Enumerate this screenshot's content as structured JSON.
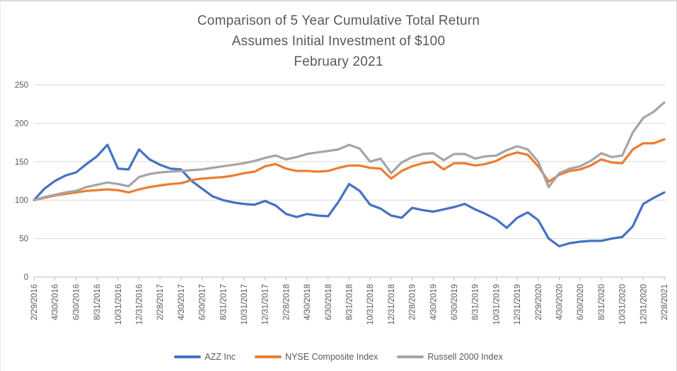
{
  "title": {
    "line1": "Comparison of 5 Year Cumulative Total Return",
    "line2": "Assumes Initial Investment of $100",
    "line3": "February 2021"
  },
  "axis_colors": {
    "gridline": "#d9d9d9",
    "axis_line": "#bfbfbf",
    "tick": "#bfbfbf",
    "label_text": "#595959"
  },
  "chart_data": {
    "type": "line",
    "title": "Comparison of 5 Year Cumulative Total Return Assumes Initial Investment of $100 February 2021",
    "xlabel": "",
    "ylabel": "",
    "ylim": [
      0,
      250
    ],
    "yticks": [
      0,
      50,
      100,
      150,
      200,
      250
    ],
    "grid": "horizontal",
    "legend_position": "bottom",
    "x_tick_labels": [
      "2/29/2016",
      "4/30/2016",
      "6/30/2016",
      "8/31/2016",
      "10/31/2016",
      "12/31/2016",
      "2/28/2017",
      "4/30/2017",
      "6/30/2017",
      "8/31/2017",
      "10/31/2017",
      "12/31/2017",
      "2/28/2018",
      "4/30/2018",
      "6/30/2018",
      "8/31/2018",
      "10/31/2018",
      "12/31/2018",
      "2/28/2019",
      "4/30/2019",
      "6/30/2019",
      "8/31/2019",
      "10/31/2019",
      "12/31/2019",
      "2/29/2020",
      "4/30/2020",
      "6/30/2020",
      "8/31/2020",
      "10/31/2020",
      "12/31/2020",
      "2/28/2021"
    ],
    "x": [
      "2/29/2016",
      "3/31/2016",
      "4/30/2016",
      "5/31/2016",
      "6/30/2016",
      "7/31/2016",
      "8/31/2016",
      "9/30/2016",
      "10/31/2016",
      "11/30/2016",
      "12/31/2016",
      "1/31/2017",
      "2/28/2017",
      "3/31/2017",
      "4/30/2017",
      "5/31/2017",
      "6/30/2017",
      "7/31/2017",
      "8/31/2017",
      "9/30/2017",
      "10/31/2017",
      "11/30/2017",
      "12/31/2017",
      "1/31/2018",
      "2/28/2018",
      "3/31/2018",
      "4/30/2018",
      "5/31/2018",
      "6/30/2018",
      "7/31/2018",
      "8/31/2018",
      "9/30/2018",
      "10/31/2018",
      "11/30/2018",
      "12/31/2018",
      "1/31/2019",
      "2/28/2019",
      "3/31/2019",
      "4/30/2019",
      "5/31/2019",
      "6/30/2019",
      "7/31/2019",
      "8/31/2019",
      "9/30/2019",
      "10/31/2019",
      "11/30/2019",
      "12/31/2019",
      "1/31/2020",
      "2/29/2020",
      "3/31/2020",
      "4/30/2020",
      "5/31/2020",
      "6/30/2020",
      "7/31/2020",
      "8/31/2020",
      "9/30/2020",
      "10/31/2020",
      "11/30/2020",
      "12/31/2020",
      "1/31/2021",
      "2/28/2021"
    ],
    "series": [
      {
        "name": "AZZ Inc",
        "color": "#4472C4",
        "values": [
          100,
          115,
          125,
          132,
          136,
          147,
          157,
          172,
          141,
          140,
          166,
          153,
          146,
          141,
          140,
          125,
          115,
          105,
          100,
          97,
          95,
          94,
          99,
          93,
          82,
          78,
          82,
          80,
          79,
          98,
          121,
          112,
          94,
          89,
          80,
          77,
          90,
          87,
          85,
          88,
          91,
          95,
          88,
          82,
          75,
          64,
          77,
          84,
          74,
          50,
          40,
          44,
          46,
          47,
          47,
          50,
          52,
          66,
          95,
          103,
          110
        ]
      },
      {
        "name": "NYSE Composite Index",
        "color": "#ED7D31",
        "values": [
          100,
          103,
          106,
          108,
          110,
          112,
          113,
          114,
          113,
          110,
          114,
          117,
          119,
          121,
          122,
          126,
          128,
          129,
          130,
          132,
          135,
          137,
          144,
          147,
          141,
          138,
          138,
          137,
          138,
          142,
          145,
          145,
          142,
          141,
          128,
          138,
          144,
          148,
          150,
          140,
          148,
          148,
          145,
          147,
          151,
          158,
          162,
          159,
          144,
          124,
          133,
          138,
          140,
          145,
          153,
          149,
          148,
          166,
          174,
          174,
          179
        ]
      },
      {
        "name": "Russell 2000 Index",
        "color": "#A5A5A5",
        "values": [
          100,
          104,
          107,
          110,
          112,
          117,
          120,
          123,
          121,
          118,
          130,
          134,
          136,
          137,
          138,
          139,
          140,
          142,
          144,
          146,
          148,
          151,
          155,
          158,
          153,
          156,
          160,
          162,
          164,
          166,
          172,
          167,
          150,
          154,
          135,
          149,
          156,
          160,
          161,
          152,
          160,
          160,
          154,
          157,
          158,
          165,
          170,
          166,
          150,
          117,
          135,
          141,
          144,
          151,
          161,
          156,
          158,
          188,
          207,
          215,
          227
        ]
      }
    ]
  }
}
